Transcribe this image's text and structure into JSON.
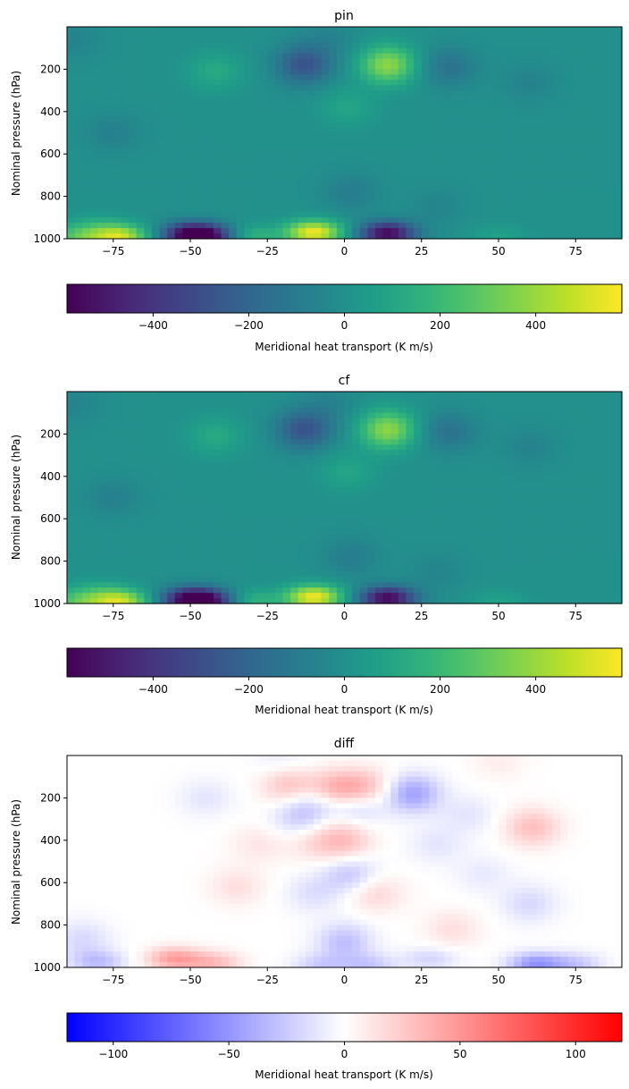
{
  "chart_data": [
    {
      "type": "heatmap",
      "title": "pin",
      "ylabel": "Nominal pressure (hPa)",
      "xlim": [
        -90,
        90
      ],
      "ylim": [
        1000,
        0
      ],
      "xticks": [
        -75,
        -50,
        -25,
        0,
        25,
        50,
        75
      ],
      "yticks": [
        200,
        400,
        600,
        800,
        1000
      ],
      "colormap": "viridis",
      "colorbar": {
        "label": "Meridional heat transport (K m/s)",
        "range": [
          -580,
          580
        ],
        "ticks": [
          -400,
          -200,
          0,
          200,
          400
        ]
      },
      "features": [
        {
          "lat": -10,
          "p": 970,
          "value": 560
        },
        {
          "lat": -30,
          "p": 990,
          "value": 180
        },
        {
          "lat": -50,
          "p": 980,
          "value": -560
        },
        {
          "lat": -43,
          "p": 990,
          "value": -350
        },
        {
          "lat": 14,
          "p": 975,
          "value": -560
        },
        {
          "lat": -73,
          "p": 990,
          "value": 480
        },
        {
          "lat": -86,
          "p": 990,
          "value": 250
        },
        {
          "lat": -80,
          "p": 930,
          "value": 80
        },
        {
          "lat": 14,
          "p": 180,
          "value": 380
        },
        {
          "lat": -13,
          "p": 180,
          "value": -280
        },
        {
          "lat": -42,
          "p": 210,
          "value": 120
        },
        {
          "lat": 34,
          "p": 190,
          "value": -140
        },
        {
          "lat": 1,
          "p": 380,
          "value": 100
        },
        {
          "lat": 2,
          "p": 780,
          "value": -90
        },
        {
          "lat": 50,
          "p": 990,
          "value": 80
        },
        {
          "lat": -88,
          "p": 60,
          "value": -60
        },
        {
          "lat": -5,
          "p": 60,
          "value": -60
        },
        {
          "lat": 60,
          "p": 260,
          "value": -60
        },
        {
          "lat": -75,
          "p": 500,
          "value": -70
        },
        {
          "lat": 30,
          "p": 850,
          "value": -50
        }
      ]
    },
    {
      "type": "heatmap",
      "title": "cf",
      "ylabel": "Nominal pressure (hPa)",
      "xlim": [
        -90,
        90
      ],
      "ylim": [
        1000,
        0
      ],
      "xticks": [
        -75,
        -50,
        -25,
        0,
        25,
        50,
        75
      ],
      "yticks": [
        200,
        400,
        600,
        800,
        1000
      ],
      "colormap": "viridis",
      "colorbar": {
        "label": "Meridional heat transport (K m/s)",
        "range": [
          -580,
          580
        ],
        "ticks": [
          -400,
          -200,
          0,
          200,
          400
        ]
      },
      "features": [
        {
          "lat": -10,
          "p": 970,
          "value": 560
        },
        {
          "lat": -30,
          "p": 990,
          "value": 180
        },
        {
          "lat": -50,
          "p": 980,
          "value": -560
        },
        {
          "lat": -43,
          "p": 990,
          "value": -350
        },
        {
          "lat": 14,
          "p": 975,
          "value": -560
        },
        {
          "lat": -73,
          "p": 990,
          "value": 480
        },
        {
          "lat": -86,
          "p": 990,
          "value": 250
        },
        {
          "lat": -80,
          "p": 930,
          "value": 80
        },
        {
          "lat": 14,
          "p": 180,
          "value": 380
        },
        {
          "lat": -13,
          "p": 180,
          "value": -280
        },
        {
          "lat": -42,
          "p": 210,
          "value": 120
        },
        {
          "lat": 34,
          "p": 190,
          "value": -140
        },
        {
          "lat": 1,
          "p": 380,
          "value": 100
        },
        {
          "lat": 2,
          "p": 780,
          "value": -90
        },
        {
          "lat": 50,
          "p": 990,
          "value": 80
        },
        {
          "lat": -88,
          "p": 60,
          "value": -60
        },
        {
          "lat": -5,
          "p": 60,
          "value": -60
        },
        {
          "lat": 60,
          "p": 260,
          "value": -60
        },
        {
          "lat": -75,
          "p": 500,
          "value": -70
        },
        {
          "lat": 30,
          "p": 850,
          "value": -50
        }
      ]
    },
    {
      "type": "heatmap",
      "title": "diff",
      "ylabel": "Nominal pressure (hPa)",
      "xlim": [
        -90,
        90
      ],
      "ylim": [
        1000,
        0
      ],
      "xticks": [
        -75,
        -50,
        -25,
        0,
        25,
        50,
        75
      ],
      "yticks": [
        200,
        400,
        600,
        800,
        1000
      ],
      "colormap": "bwr",
      "colorbar": {
        "label": "Meridional heat transport (K m/s)",
        "range": [
          -120,
          120
        ],
        "ticks": [
          -100,
          -50,
          0,
          50,
          100
        ]
      },
      "features": [
        {
          "lat": -55,
          "p": 960,
          "value": 45
        },
        {
          "lat": -42,
          "p": 980,
          "value": 30
        },
        {
          "lat": 62,
          "p": 985,
          "value": -50
        },
        {
          "lat": 75,
          "p": 985,
          "value": -25
        },
        {
          "lat": -80,
          "p": 975,
          "value": -30
        },
        {
          "lat": -85,
          "p": 870,
          "value": -18
        },
        {
          "lat": 0,
          "p": 880,
          "value": -30
        },
        {
          "lat": 8,
          "p": 990,
          "value": -25
        },
        {
          "lat": -8,
          "p": 990,
          "value": -22
        },
        {
          "lat": 28,
          "p": 960,
          "value": -20
        },
        {
          "lat": 61,
          "p": 340,
          "value": 30
        },
        {
          "lat": 60,
          "p": 700,
          "value": -18
        },
        {
          "lat": -2,
          "p": 160,
          "value": 40
        },
        {
          "lat": -18,
          "p": 140,
          "value": 30
        },
        {
          "lat": 8,
          "p": 150,
          "value": 25
        },
        {
          "lat": 22,
          "p": 180,
          "value": -45
        },
        {
          "lat": 3,
          "p": 260,
          "value": -30
        },
        {
          "lat": -10,
          "p": 230,
          "value": -20
        },
        {
          "lat": 0,
          "p": 320,
          "value": 18
        },
        {
          "lat": -15,
          "p": 300,
          "value": -20
        },
        {
          "lat": 0,
          "p": 420,
          "value": 25
        },
        {
          "lat": -10,
          "p": 410,
          "value": 15
        },
        {
          "lat": 2,
          "p": 560,
          "value": -28
        },
        {
          "lat": 10,
          "p": 650,
          "value": 20
        },
        {
          "lat": -10,
          "p": 650,
          "value": -15
        },
        {
          "lat": -35,
          "p": 620,
          "value": 15
        },
        {
          "lat": -28,
          "p": 420,
          "value": 12
        },
        {
          "lat": 30,
          "p": 420,
          "value": -12
        },
        {
          "lat": 45,
          "p": 560,
          "value": -10
        },
        {
          "lat": 35,
          "p": 820,
          "value": 15
        },
        {
          "lat": -45,
          "p": 200,
          "value": -12
        },
        {
          "lat": 40,
          "p": 280,
          "value": -12
        },
        {
          "lat": -20,
          "p": 30,
          "value": -10
        },
        {
          "lat": 50,
          "p": 30,
          "value": 8
        }
      ]
    }
  ]
}
